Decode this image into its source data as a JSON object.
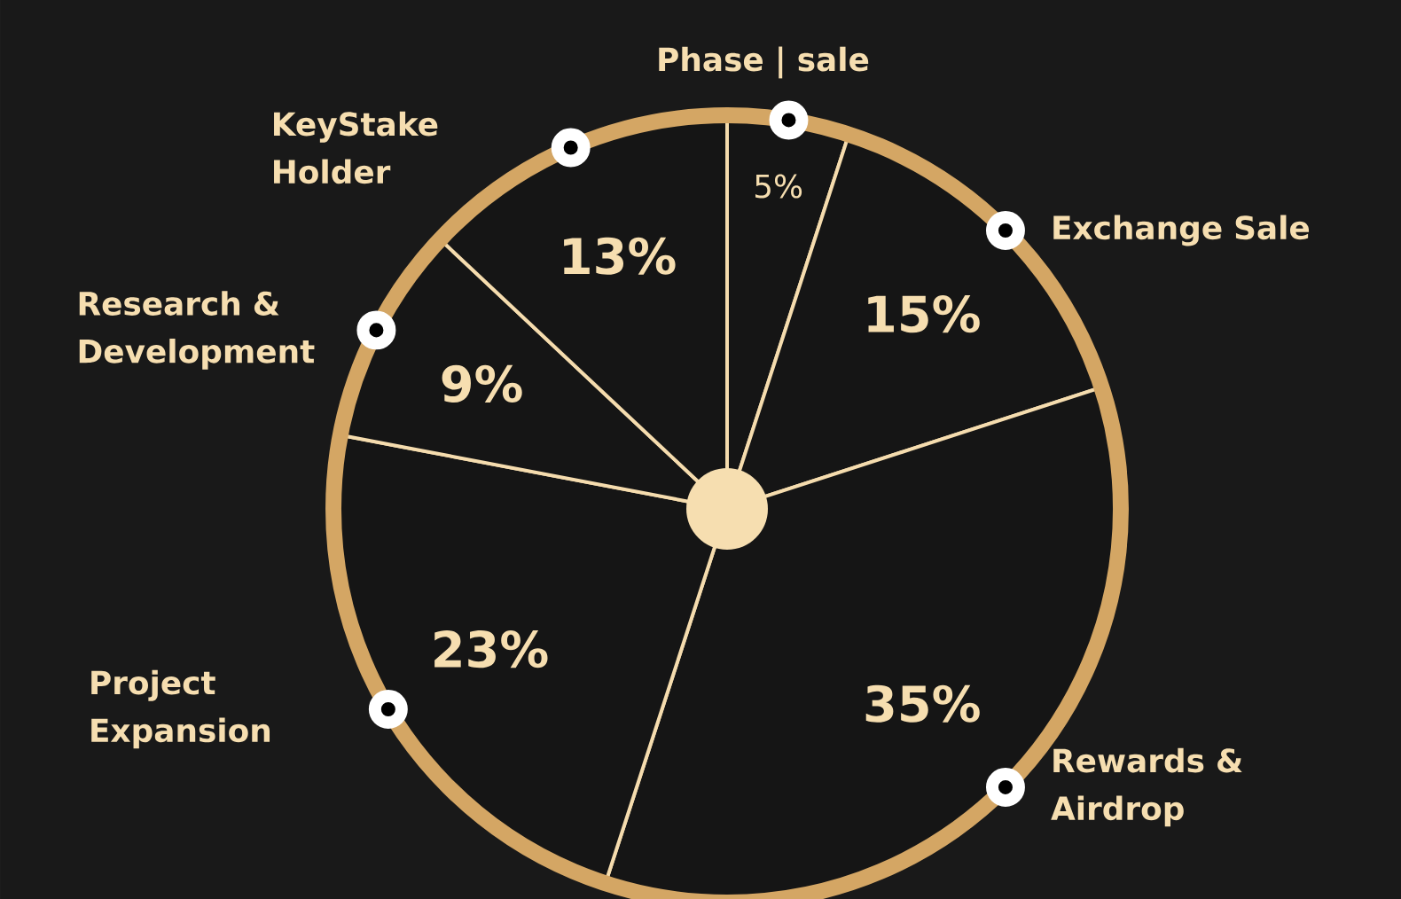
{
  "chart_data": {
    "type": "pie",
    "categories": [
      "Phase | sale",
      "Exchange Sale",
      "Rewards & Airdrop",
      "Project Expansion",
      "Research & Development",
      "KeyStake Holder"
    ],
    "values": [
      5,
      15,
      35,
      23,
      9,
      13
    ],
    "value_labels": [
      "5%",
      "15%",
      "35%",
      "23%",
      "9%",
      "13%"
    ],
    "colors": [
      "#151515",
      "#151515",
      "#151515",
      "#151515",
      "#151515",
      "#151515"
    ]
  }
}
